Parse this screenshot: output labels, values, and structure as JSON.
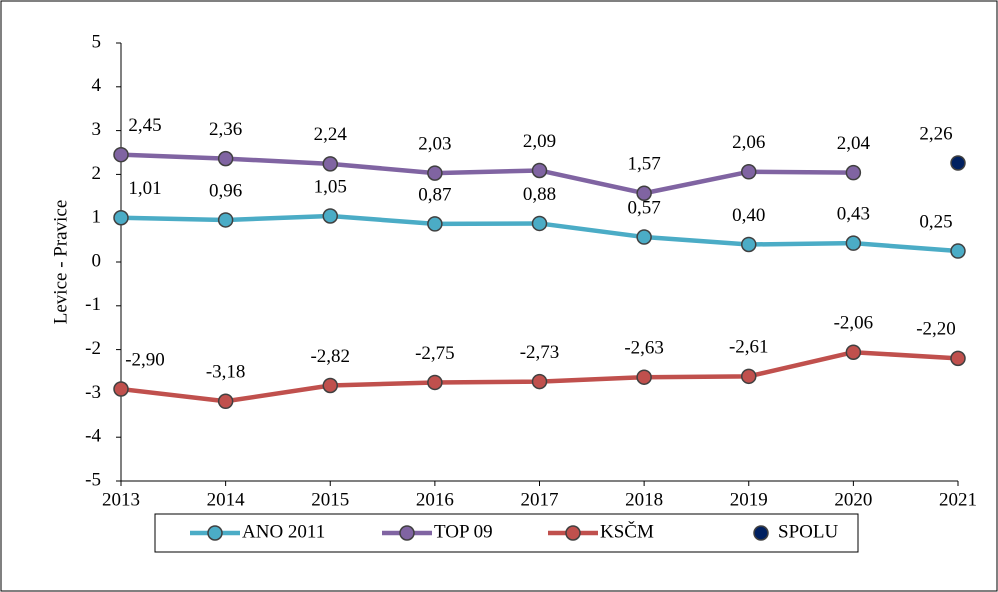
{
  "chart_data": {
    "type": "line",
    "y_label": "Levice - Pravice",
    "x": [
      2013,
      2014,
      2015,
      2016,
      2017,
      2018,
      2019,
      2020,
      2021
    ],
    "xlim": [
      2013,
      2021
    ],
    "xticks": [
      2013,
      2014,
      2015,
      2016,
      2017,
      2018,
      2019,
      2020,
      2021
    ],
    "ylim": [
      -5,
      5
    ],
    "yticks": [
      -5,
      -4,
      -3,
      -2,
      -1,
      0,
      1,
      2,
      3,
      4,
      5
    ],
    "grid": false,
    "legend": "bottom",
    "series": [
      {
        "name": "ANO 2011",
        "color": "#4bacc6",
        "values": [
          1.01,
          0.96,
          1.05,
          0.87,
          0.88,
          0.57,
          0.4,
          0.43,
          0.25
        ],
        "value_labels": [
          "1,01",
          "0,96",
          "1,05",
          "0,87",
          "0,88",
          "0,57",
          "0,40",
          "0,43",
          "0,25"
        ]
      },
      {
        "name": "TOP 09",
        "color": "#8064a2",
        "values": [
          2.45,
          2.36,
          2.24,
          2.03,
          2.09,
          1.57,
          2.06,
          2.04,
          null
        ],
        "value_labels": [
          "2,45",
          "2,36",
          "2,24",
          "2,03",
          "2,09",
          "1,57",
          "2,06",
          "2,04",
          null
        ]
      },
      {
        "name": "KSČM",
        "color": "#c0504d",
        "values": [
          -2.9,
          -3.18,
          -2.82,
          -2.75,
          -2.73,
          -2.63,
          -2.61,
          -2.06,
          -2.2
        ],
        "value_labels": [
          "-2,90",
          "-3,18",
          "-2,82",
          "-2,75",
          "-2,73",
          "-2,63",
          "-2,61",
          "-2,06",
          "-2,20"
        ]
      },
      {
        "name": "SPOLU",
        "color": "#002060",
        "line": false,
        "values": [
          null,
          null,
          null,
          null,
          null,
          null,
          null,
          null,
          2.26
        ],
        "value_labels": [
          null,
          null,
          null,
          null,
          null,
          null,
          null,
          null,
          "2,26"
        ]
      }
    ]
  }
}
